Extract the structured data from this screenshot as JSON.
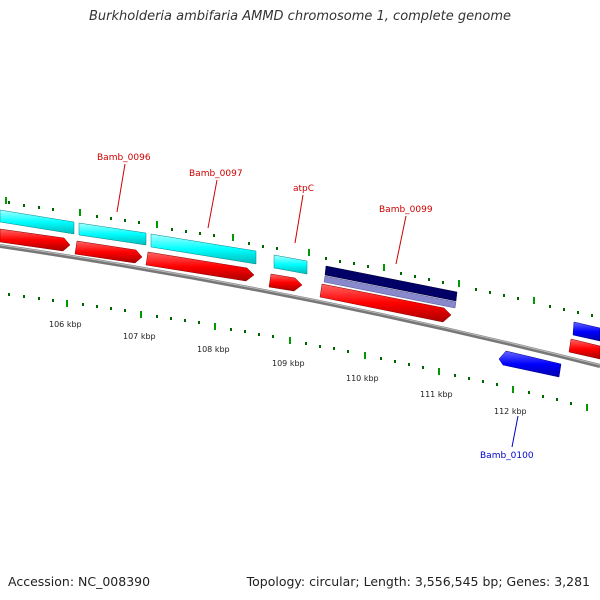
{
  "title": "Burkholderia ambifaria AMMD chromosome 1, complete genome",
  "footer": {
    "accession": "Accession: NC_008390",
    "stats": "Topology: circular; Length: 3,556,545 bp; Genes: 3,281"
  },
  "colors": {
    "cds_forward": "#00ffff",
    "cds_reverse": "#ff0000",
    "gene_label_red": "#cc0000",
    "gene_label_blue": "#0000cc",
    "backbone": "#888888",
    "tick": "#008800",
    "blue_feature": "#0000ff",
    "navy_feature": "#000066",
    "lavender_feature": "#8888cc"
  },
  "kbp_labels": [
    "106 kbp",
    "107 kbp",
    "108 kbp",
    "109 kbp",
    "110 kbp",
    "111 kbp",
    "112 kbp"
  ],
  "gene_labels": [
    {
      "name": "Bamb_0096",
      "color": "red"
    },
    {
      "name": "Bamb_0097",
      "color": "red"
    },
    {
      "name": "atpC",
      "color": "red"
    },
    {
      "name": "Bamb_0099",
      "color": "red"
    },
    {
      "name": "Bamb_0100",
      "color": "blue"
    }
  ]
}
